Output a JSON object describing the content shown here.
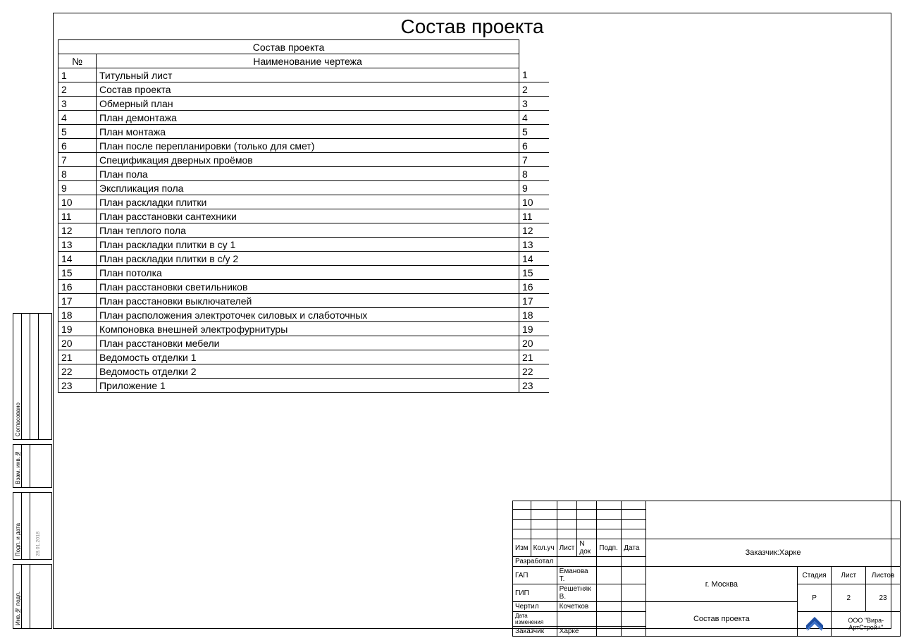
{
  "page_title": "Состав проекта",
  "table": {
    "header_title": "Состав проекта",
    "col_num": "№",
    "col_name": "Наименование чертежа",
    "rows": [
      {
        "n": "1",
        "name": "Титульный лист",
        "p": "1"
      },
      {
        "n": "2",
        "name": "Состав проекта",
        "p": "2"
      },
      {
        "n": "3",
        "name": "Обмерный план",
        "p": "3"
      },
      {
        "n": "4",
        "name": "План демонтажа",
        "p": "4"
      },
      {
        "n": "5",
        "name": "План монтажа",
        "p": "5"
      },
      {
        "n": "6",
        "name": "План после перепланировки (только для смет)",
        "p": "6"
      },
      {
        "n": "7",
        "name": "Спецификация дверных проёмов",
        "p": "7"
      },
      {
        "n": "8",
        "name": "План пола",
        "p": "8"
      },
      {
        "n": "9",
        "name": "Экспликация  пола",
        "p": "9"
      },
      {
        "n": "10",
        "name": "План раскладки плитки",
        "p": "10"
      },
      {
        "n": "11",
        "name": "План расстановки сантехники",
        "p": "11"
      },
      {
        "n": "12",
        "name": "План теплого пола",
        "p": "12"
      },
      {
        "n": "13",
        "name": "План раскладки плитки в су 1",
        "p": "13"
      },
      {
        "n": "14",
        "name": "План раскладки плитки в с/у 2",
        "p": "14"
      },
      {
        "n": "15",
        "name": "План потолка",
        "p": "15"
      },
      {
        "n": "16",
        "name": "План расстановки светильников",
        "p": "16"
      },
      {
        "n": "17",
        "name": "План расстановки выключателей",
        "p": "17"
      },
      {
        "n": "18",
        "name": "План расположения электроточек силовых и слаботочных",
        "p": "18"
      },
      {
        "n": "19",
        "name": "Компоновка внешней электрофурнитуры",
        "p": "19"
      },
      {
        "n": "20",
        "name": "План расстановки мебели",
        "p": "20"
      },
      {
        "n": "21",
        "name": "Ведомость отделки 1",
        "p": "21"
      },
      {
        "n": "22",
        "name": "Ведомость отделки 2",
        "p": "22"
      },
      {
        "n": "23",
        "name": "Приложение 1",
        "p": "23"
      }
    ]
  },
  "side_labels": {
    "agreed": "Согласовано",
    "vzam": "Взам. инв.№",
    "date_small": "28.01.2018",
    "podp_data": "Подп. и дата",
    "inv_podl": "Инв.№ подл."
  },
  "title_block": {
    "hdr_izm": "Изм",
    "hdr_koluch": "Кол.уч",
    "hdr_list": "Лист",
    "hdr_ndok": "N док",
    "hdr_podp": "Подп.",
    "hdr_data": "Дата",
    "row_razrab": "Разработал",
    "row_gap": "ГАП",
    "row_gap_name": "Еманова Т.",
    "row_gip": "ГИП",
    "row_gip_name": "Решетняк В.",
    "row_chertil": "Чертил",
    "row_chertil_name": "Кочетков",
    "row_dataizm": "Дата изменения",
    "row_zakazchik": "Заказчик",
    "row_zakazchik_name": "Харке",
    "customer_label": "Заказчик:Харке",
    "city": "г. Москва",
    "stadia_hdr": "Стадия",
    "list_hdr": "Лист",
    "listov_hdr": "Листов",
    "stadia_val": "Р",
    "list_val": "2",
    "listov_val": "23",
    "doc_name": "Состав проекта",
    "company": "ООО \"Вира-АртСтрой+\"",
    "logo_colors": {
      "main": "#1e4fa3",
      "accent": "#3a6fc7"
    }
  },
  "styling": {
    "border_color": "#000000",
    "background": "#ffffff",
    "title_fontsize": 28,
    "table_fontsize": 14,
    "stamp_fontsize": 10
  }
}
